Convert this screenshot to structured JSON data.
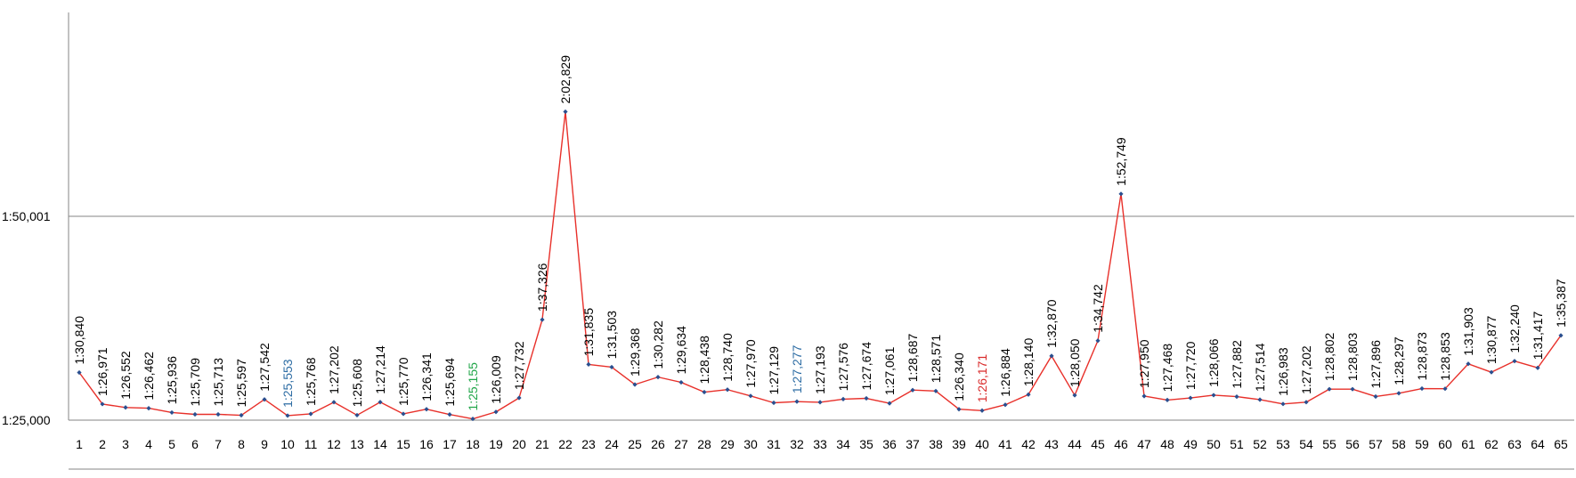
{
  "chart_data": {
    "type": "line",
    "title": "",
    "xlabel": "",
    "ylabel": "",
    "y_unit": "seconds",
    "ylim": [
      85.0,
      135.0
    ],
    "yticks": [
      {
        "label": "1:25,000",
        "value": 85.0
      },
      {
        "label": "1:50,001",
        "value": 110.001
      }
    ],
    "grid": true,
    "legend": "none",
    "colors": {
      "line": "#e8302a",
      "marker": "#2a4f8f",
      "label_default": "#000000",
      "label_blue": "#2e6da4",
      "label_green": "#22a64a",
      "label_red": "#d92b2b",
      "gridline": "#868686",
      "axis": "#868686"
    },
    "categories": [
      "1",
      "2",
      "3",
      "4",
      "5",
      "6",
      "7",
      "8",
      "9",
      "10",
      "11",
      "12",
      "13",
      "14",
      "15",
      "16",
      "17",
      "18",
      "19",
      "20",
      "21",
      "22",
      "23",
      "24",
      "25",
      "26",
      "27",
      "28",
      "29",
      "30",
      "31",
      "32",
      "33",
      "34",
      "35",
      "36",
      "37",
      "38",
      "39",
      "40",
      "41",
      "42",
      "43",
      "44",
      "45",
      "46",
      "47",
      "48",
      "49",
      "50",
      "51",
      "52",
      "53",
      "54",
      "55",
      "56",
      "57",
      "58",
      "59",
      "60",
      "61",
      "62",
      "63",
      "64",
      "65"
    ],
    "values": [
      90.84,
      86.971,
      86.552,
      86.462,
      85.936,
      85.709,
      85.713,
      85.597,
      87.542,
      85.553,
      85.768,
      87.202,
      85.608,
      87.214,
      85.77,
      86.341,
      85.694,
      85.155,
      86.009,
      87.732,
      97.326,
      122.829,
      91.835,
      91.503,
      89.368,
      90.282,
      89.634,
      88.438,
      88.74,
      87.97,
      87.129,
      87.277,
      87.193,
      87.576,
      87.674,
      87.061,
      88.687,
      88.571,
      86.34,
      86.171,
      86.884,
      88.14,
      92.87,
      88.05,
      94.742,
      112.749,
      87.95,
      87.468,
      87.72,
      88.066,
      87.882,
      87.514,
      86.983,
      87.202,
      88.802,
      88.803,
      87.896,
      88.297,
      88.873,
      88.853,
      91.903,
      90.877,
      92.24,
      91.417,
      95.387
    ],
    "labels": [
      "1:30,840",
      "1:26,971",
      "1:26,552",
      "1:26,462",
      "1:25,936",
      "1:25,709",
      "1:25,713",
      "1:25,597",
      "1:27,542",
      "1:25,553",
      "1:25,768",
      "1:27,202",
      "1:25,608",
      "1:27,214",
      "1:25,770",
      "1:26,341",
      "1:25,694",
      "1:25,155",
      "1:26,009",
      "1:27,732",
      "1:37,326",
      "2:02,829",
      "1:31,835",
      "1:31,503",
      "1:29,368",
      "1:30,282",
      "1:29,634",
      "1:28,438",
      "1:28,740",
      "1:27,970",
      "1:27,129",
      "1:27,277",
      "1:27,193",
      "1:27,576",
      "1:27,674",
      "1:27,061",
      "1:28,687",
      "1:28,571",
      "1:26,340",
      "1:26,171",
      "1:26,884",
      "1:28,140",
      "1:32,870",
      "1:28,050",
      "1:34,742",
      "1:52,749",
      "1:27,950",
      "1:27,468",
      "1:27,720",
      "1:28,066",
      "1:27,882",
      "1:27,514",
      "1:26,983",
      "1:27,202",
      "1:28,802",
      "1:28,803",
      "1:27,896",
      "1:28,297",
      "1:28,873",
      "1:28,853",
      "1:31,903",
      "1:30,877",
      "1:32,240",
      "1:31,417",
      "1:35,387"
    ],
    "highlighted_labels": {
      "10": "blue",
      "18": "green",
      "32": "blue",
      "40": "red"
    }
  }
}
